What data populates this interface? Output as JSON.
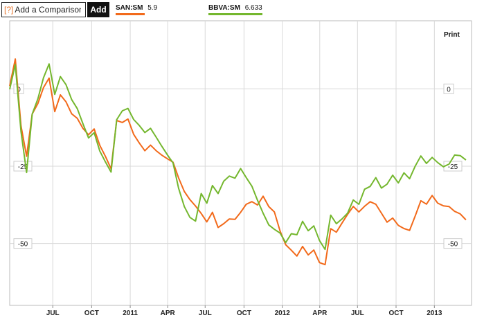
{
  "toolbar": {
    "help_label": "[?]",
    "compare_placeholder": "Add a Comparison",
    "add_label": "Add"
  },
  "legend": [
    {
      "symbol": "SAN:SM",
      "value": "5.9",
      "color": "#f26a1b"
    },
    {
      "symbol": "BBVA:SM",
      "value": "6.633",
      "color": "#74b72e"
    }
  ],
  "print_label": "Print",
  "chart_data": {
    "type": "line",
    "ylim": [
      -70,
      22
    ],
    "yticks": [
      0,
      -25,
      -50
    ],
    "ytick_labels_left": [
      "0",
      "-25",
      "-50"
    ],
    "ytick_labels_right": [
      "0",
      "-25",
      "-50"
    ],
    "xticks": [
      {
        "label": "JUL",
        "x": 0.153
      },
      {
        "label": "OCT",
        "x": 0.291
      },
      {
        "label": "2011",
        "x": 0.428
      },
      {
        "label": "APR",
        "x": 0.561
      },
      {
        "label": "JUL",
        "x": 0.694
      },
      {
        "label": "OCT",
        "x": 0.832
      },
      {
        "label": "2012",
        "x": 0.968
      },
      {
        "label": "APR",
        "x": 1.101
      },
      {
        "label": "JUL",
        "x": 1.235
      },
      {
        "label": "OCT",
        "x": 1.372
      },
      {
        "label": "2013",
        "x": 1.508
      }
    ],
    "x_range": [
      0,
      1.64
    ],
    "x_unit": "years since 2010-01-01 (approx)",
    "grid": true,
    "series": [
      {
        "name": "SAN:SM",
        "color": "#f26a1b",
        "x": [
          0.0,
          0.02,
          0.04,
          0.06,
          0.08,
          0.1,
          0.12,
          0.14,
          0.16,
          0.18,
          0.2,
          0.22,
          0.24,
          0.26,
          0.28,
          0.3,
          0.32,
          0.34,
          0.36,
          0.38,
          0.4,
          0.42,
          0.44,
          0.46,
          0.48,
          0.5,
          0.52,
          0.54,
          0.56,
          0.58,
          0.6,
          0.62,
          0.64,
          0.66,
          0.68,
          0.7,
          0.72,
          0.74,
          0.76,
          0.78,
          0.8,
          0.82,
          0.84,
          0.86,
          0.88,
          0.9,
          0.92,
          0.94,
          0.96,
          0.98,
          1.0,
          1.02,
          1.04,
          1.06,
          1.08,
          1.1,
          1.12,
          1.14,
          1.16,
          1.18,
          1.2,
          1.22,
          1.24,
          1.26,
          1.28,
          1.3,
          1.32,
          1.34,
          1.36,
          1.38,
          1.4,
          1.42,
          1.44,
          1.46,
          1.48,
          1.5,
          1.52,
          1.54,
          1.56,
          1.58,
          1.6,
          1.62
        ],
        "y": [
          0,
          8,
          -14,
          -24,
          -10,
          -6,
          0,
          4,
          -6,
          0,
          -2,
          -6,
          -8,
          -12,
          -15,
          -14,
          -20,
          -24,
          -28,
          -12,
          -12,
          -10,
          -14,
          -16,
          -18,
          -16,
          -18,
          -20,
          -22,
          -24,
          -30,
          -35,
          -38,
          -40,
          -42,
          -44,
          -40,
          -44,
          -42,
          -40,
          -40,
          -38,
          -36,
          -36,
          -38,
          -36,
          -40,
          -42,
          -48,
          -52,
          -53,
          -54,
          -50,
          -52,
          -50,
          -54,
          -55,
          -44,
          -46,
          -44,
          -42,
          -40,
          -42,
          -40,
          -38,
          -38,
          -40,
          -42,
          -40,
          -42,
          -43,
          -44,
          -40,
          -36,
          -38,
          -36,
          -39,
          -40,
          -40,
          -41,
          -41,
          -42
        ]
      },
      {
        "name": "BBVA:SM",
        "color": "#74b72e",
        "x": [
          0.0,
          0.02,
          0.04,
          0.06,
          0.08,
          0.1,
          0.12,
          0.14,
          0.16,
          0.18,
          0.2,
          0.22,
          0.24,
          0.26,
          0.28,
          0.3,
          0.32,
          0.34,
          0.36,
          0.38,
          0.4,
          0.42,
          0.44,
          0.46,
          0.48,
          0.5,
          0.52,
          0.54,
          0.56,
          0.58,
          0.6,
          0.62,
          0.64,
          0.66,
          0.68,
          0.7,
          0.72,
          0.74,
          0.76,
          0.78,
          0.8,
          0.82,
          0.84,
          0.86,
          0.88,
          0.9,
          0.92,
          0.94,
          0.96,
          0.98,
          1.0,
          1.02,
          1.04,
          1.06,
          1.08,
          1.1,
          1.12,
          1.14,
          1.16,
          1.18,
          1.2,
          1.22,
          1.24,
          1.26,
          1.28,
          1.3,
          1.32,
          1.34,
          1.36,
          1.38,
          1.4,
          1.42,
          1.44,
          1.46,
          1.48,
          1.5,
          1.52,
          1.54,
          1.56,
          1.58,
          1.6,
          1.62
        ],
        "y": [
          2,
          10,
          -12,
          -26,
          -8,
          -4,
          2,
          6,
          -4,
          2,
          0,
          -4,
          -6,
          -10,
          -14,
          -12,
          -18,
          -22,
          -26,
          -10,
          -8,
          -8,
          -12,
          -14,
          -16,
          -14,
          -16,
          -18,
          -20,
          -22,
          -30,
          -36,
          -40,
          -42,
          -34,
          -38,
          -33,
          -36,
          -32,
          -30,
          -30,
          -26,
          -28,
          -30,
          -34,
          -38,
          -42,
          -44,
          -46,
          -50,
          -48,
          -49,
          -45,
          -48,
          -46,
          -50,
          -52,
          -40,
          -42,
          -40,
          -38,
          -34,
          -36,
          -32,
          -32,
          -30,
          -34,
          -33,
          -30,
          -32,
          -28,
          -29,
          -24,
          -20,
          -22,
          -20,
          -22,
          -24,
          -24,
          -22,
          -23,
          -25
        ]
      }
    ]
  }
}
